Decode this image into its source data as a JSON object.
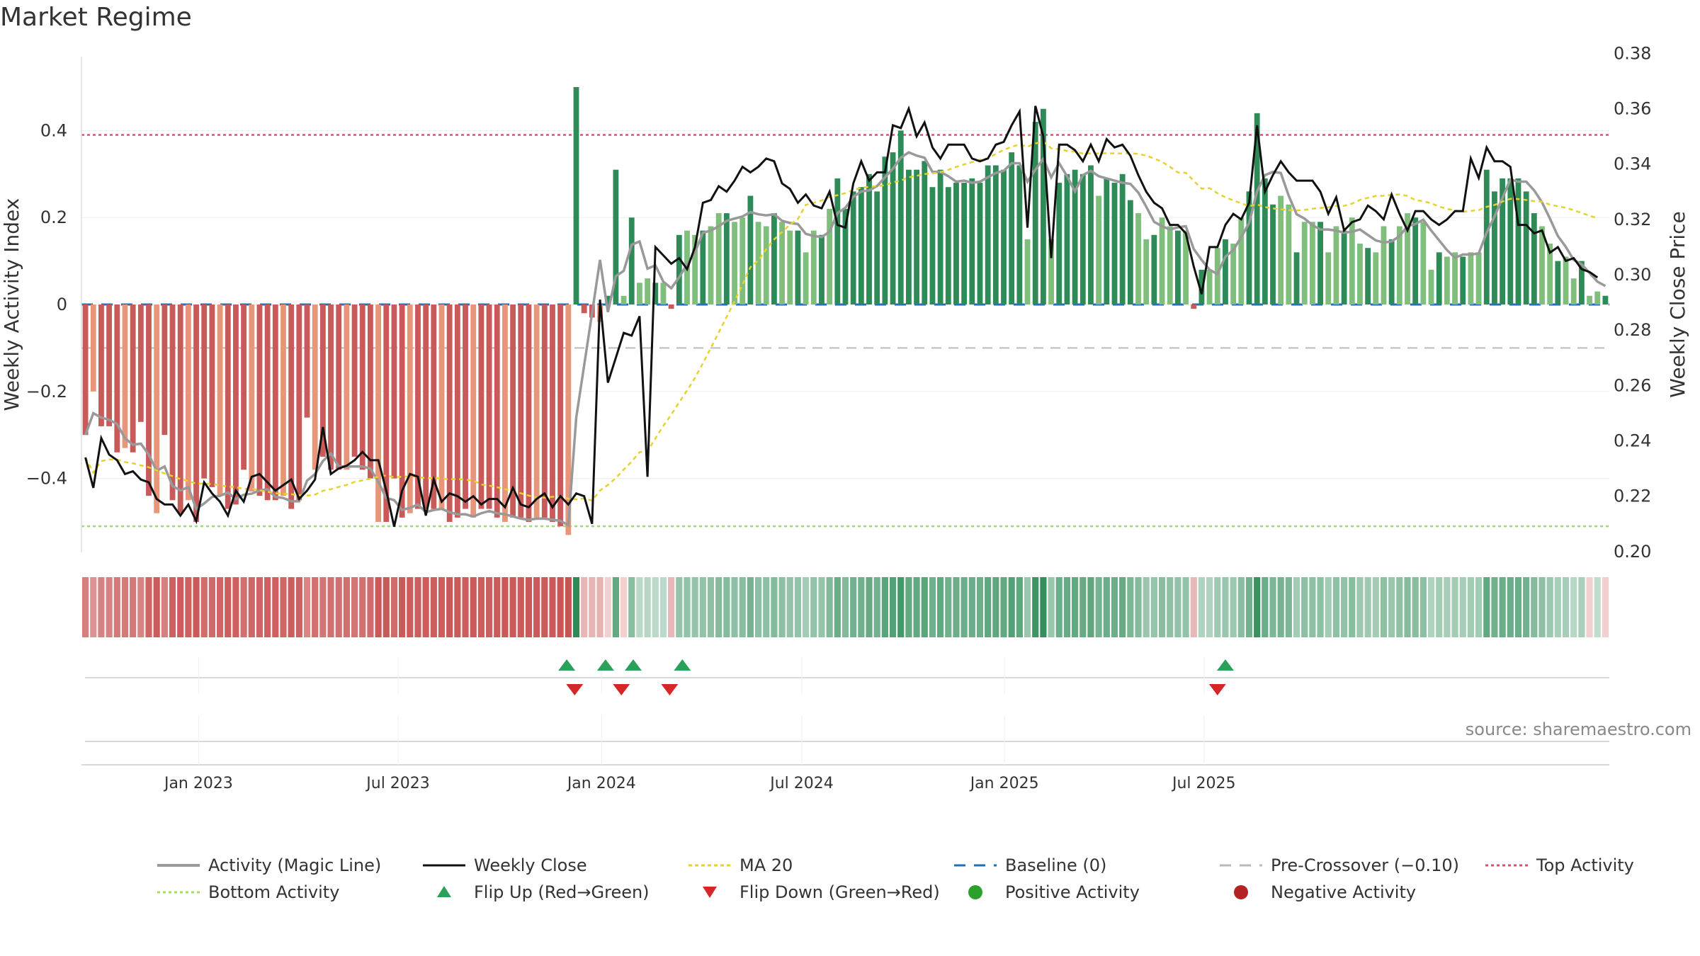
{
  "title": "Market Regime",
  "source": "source: sharemaestro.com",
  "colors": {
    "bar_green_strong": "#2e8b57",
    "bar_green_light": "#7fbf7b",
    "bar_red_strong": "#c85a5a",
    "bar_red_light": "#e8967a",
    "weekly_close": "#111111",
    "magic_line": "#999999",
    "ma20": "#e6d22e",
    "baseline": "#1f6fb4",
    "precross": "#bbbbbb",
    "top_activity": "#d9536b",
    "bottom_activity": "#9edc6e",
    "flip_up": "#2aa05a",
    "flip_down": "#d62728",
    "positive": "#2ca02c",
    "negative": "#b22222"
  },
  "legend": [
    {
      "key": "magic",
      "label": "Activity (Magic Line)"
    },
    {
      "key": "close",
      "label": "Weekly Close"
    },
    {
      "key": "ma20",
      "label": "MA 20"
    },
    {
      "key": "baseline",
      "label": "Baseline (0)"
    },
    {
      "key": "precross",
      "label": "Pre-Crossover (−0.10)"
    },
    {
      "key": "top",
      "label": "Top Activity"
    },
    {
      "key": "bottom",
      "label": "Bottom Activity"
    },
    {
      "key": "flipup",
      "label": "Flip Up (Red→Green)"
    },
    {
      "key": "flipdown",
      "label": "Flip Down (Green→Red)"
    },
    {
      "key": "positive",
      "label": "Positive Activity"
    },
    {
      "key": "negative",
      "label": "Negative Activity"
    }
  ],
  "chart_data": {
    "type": "bar",
    "title": "Market Regime",
    "ylabel_left": "Weekly Activity Index",
    "ylabel_right": "Weekly Close Price",
    "y_left_ticks": [
      0.4,
      0.2,
      0,
      -0.2,
      -0.4
    ],
    "y_left_tick_labels": [
      "0.4",
      "0.2",
      "0",
      "−0.2",
      "−0.4"
    ],
    "y_left_range": [
      -0.57,
      0.57
    ],
    "y_right_ticks": [
      0.38,
      0.36,
      0.34,
      0.32,
      0.3,
      0.28,
      0.26,
      0.24,
      0.22,
      0.2
    ],
    "y_right_tick_labels": [
      "0.38",
      "0.36",
      "0.34",
      "0.32",
      "0.30",
      "0.28",
      "0.26",
      "0.24",
      "0.22",
      "0.20"
    ],
    "y_right_range": [
      0.1997,
      0.3788
    ],
    "x_week_range": [
      0,
      153
    ],
    "x_ticks": [
      {
        "label": "Jan 2023",
        "week": 14.8
      },
      {
        "label": "Jul 2023",
        "week": 40.0
      },
      {
        "label": "Jan 2024",
        "week": 65.7
      },
      {
        "label": "Jul 2024",
        "week": 91.0
      },
      {
        "label": "Jan 2025",
        "week": 116.6
      },
      {
        "label": "Jul 2025",
        "week": 141.8
      }
    ],
    "reference_lines": {
      "baseline": 0,
      "pre_crossover": -0.1,
      "top_activity": 0.39,
      "bottom_activity": -0.51
    },
    "activity_bars": [
      -0.3,
      -0.2,
      -0.28,
      -0.28,
      -0.34,
      -0.33,
      -0.34,
      -0.27,
      -0.44,
      -0.48,
      -0.3,
      -0.45,
      -0.48,
      -0.45,
      -0.5,
      -0.4,
      -0.42,
      -0.44,
      -0.47,
      -0.46,
      -0.38,
      -0.43,
      -0.44,
      -0.45,
      -0.45,
      -0.44,
      -0.47,
      -0.45,
      -0.26,
      -0.38,
      -0.35,
      -0.38,
      -0.38,
      -0.38,
      -0.35,
      -0.38,
      -0.4,
      -0.5,
      -0.5,
      -0.4,
      -0.49,
      -0.48,
      -0.47,
      -0.47,
      -0.47,
      -0.47,
      -0.5,
      -0.49,
      -0.47,
      -0.49,
      -0.47,
      -0.47,
      -0.49,
      -0.5,
      -0.49,
      -0.49,
      -0.5,
      -0.49,
      -0.49,
      -0.5,
      -0.51,
      -0.53,
      0.5,
      -0.02,
      -0.03,
      -0.04,
      0.02,
      0.31,
      0.02,
      0.2,
      0.05,
      0.06,
      0.05,
      0.05,
      -0.01,
      0.16,
      0.17,
      0.16,
      0.17,
      0.18,
      0.21,
      0.21,
      0.19,
      0.2,
      0.25,
      0.19,
      0.18,
      0.21,
      0.19,
      0.17,
      0.17,
      0.12,
      0.17,
      0.16,
      0.22,
      0.29,
      0.22,
      0.26,
      0.27,
      0.3,
      0.26,
      0.34,
      0.35,
      0.4,
      0.31,
      0.31,
      0.33,
      0.27,
      0.31,
      0.27,
      0.28,
      0.28,
      0.29,
      0.28,
      0.32,
      0.32,
      0.31,
      0.35,
      0.32,
      0.15,
      0.42,
      0.45,
      0.15,
      0.28,
      0.3,
      0.31,
      0.3,
      0.32,
      0.25,
      0.29,
      0.28,
      0.3,
      0.24,
      0.21,
      0.15,
      0.16,
      0.2,
      0.18,
      0.17,
      0.17,
      -0.01,
      0.08,
      0.08,
      0.13,
      0.15,
      0.14,
      0.2,
      0.26,
      0.44,
      0.29,
      0.23,
      0.25,
      0.23,
      0.12,
      0.19,
      0.19,
      0.19,
      0.12,
      0.18,
      0.17,
      0.2,
      0.14,
      0.13,
      0.12,
      0.18,
      0.15,
      0.18,
      0.21,
      0.2,
      0.19,
      0.08,
      0.12,
      0.11,
      0.12,
      0.11,
      0.12,
      0.12,
      0.31,
      0.26,
      0.29,
      0.29,
      0.29,
      0.26,
      0.21,
      0.18,
      0.14,
      0.1,
      0.11,
      0.06,
      0.1,
      0.02,
      0.03,
      0.02
    ],
    "weekly_close": [
      0.234,
      0.223,
      0.241,
      0.235,
      0.233,
      0.228,
      0.229,
      0.226,
      0.225,
      0.219,
      0.217,
      0.217,
      0.213,
      0.217,
      0.211,
      0.225,
      0.221,
      0.218,
      0.213,
      0.222,
      0.218,
      0.227,
      0.228,
      0.225,
      0.222,
      0.224,
      0.226,
      0.219,
      0.222,
      0.226,
      0.245,
      0.228,
      0.23,
      0.231,
      0.233,
      0.236,
      0.233,
      0.233,
      0.222,
      0.209,
      0.222,
      0.228,
      0.227,
      0.213,
      0.226,
      0.218,
      0.221,
      0.22,
      0.218,
      0.22,
      0.217,
      0.219,
      0.219,
      0.216,
      0.223,
      0.217,
      0.216,
      0.219,
      0.221,
      0.216,
      0.22,
      0.217,
      0.221,
      0.22,
      0.21,
      0.291,
      0.261,
      0.27,
      0.279,
      0.278,
      0.285,
      0.227,
      0.31,
      0.307,
      0.304,
      0.306,
      0.302,
      0.31,
      0.326,
      0.327,
      0.332,
      0.33,
      0.334,
      0.339,
      0.337,
      0.339,
      0.342,
      0.341,
      0.333,
      0.331,
      0.326,
      0.329,
      0.325,
      0.324,
      0.33,
      0.318,
      0.317,
      0.333,
      0.341,
      0.334,
      0.337,
      0.337,
      0.354,
      0.353,
      0.36,
      0.35,
      0.355,
      0.346,
      0.342,
      0.347,
      0.347,
      0.347,
      0.342,
      0.341,
      0.342,
      0.347,
      0.348,
      0.354,
      0.359,
      0.317,
      0.361,
      0.35,
      0.306,
      0.347,
      0.347,
      0.345,
      0.341,
      0.347,
      0.341,
      0.349,
      0.346,
      0.347,
      0.343,
      0.336,
      0.33,
      0.326,
      0.324,
      0.318,
      0.318,
      0.315,
      0.303,
      0.293,
      0.31,
      0.31,
      0.318,
      0.322,
      0.32,
      0.326,
      0.354,
      0.33,
      0.336,
      0.341,
      0.337,
      0.334,
      0.334,
      0.334,
      0.33,
      0.322,
      0.328,
      0.316,
      0.319,
      0.32,
      0.325,
      0.323,
      0.32,
      0.329,
      0.322,
      0.316,
      0.323,
      0.323,
      0.32,
      0.318,
      0.32,
      0.323,
      0.323,
      0.342,
      0.335,
      0.346,
      0.341,
      0.341,
      0.339,
      0.318,
      0.318,
      0.315,
      0.316,
      0.308,
      0.31,
      0.305,
      0.306,
      0.302,
      0.301,
      0.299
    ],
    "flip_up_weeks": [
      61.3,
      66.2,
      69.7,
      75.9,
      144.5
    ],
    "flip_down_weeks": [
      62.3,
      68.2,
      74.3,
      143.5
    ]
  }
}
